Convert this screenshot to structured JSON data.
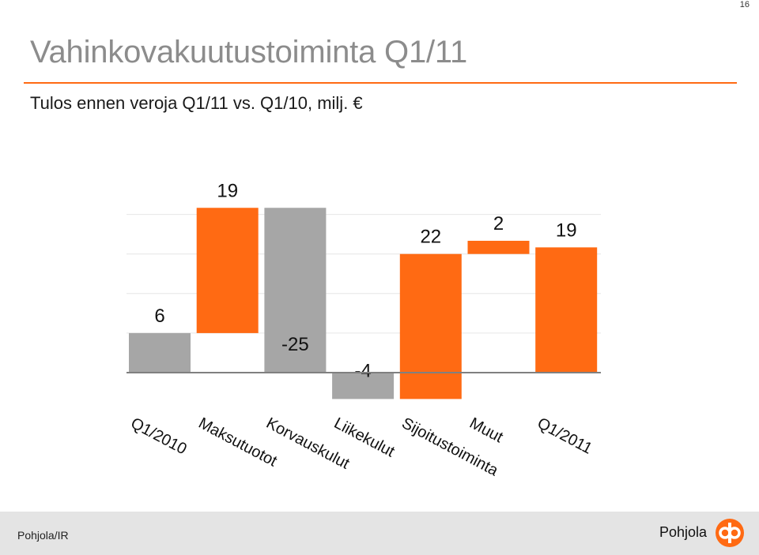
{
  "slide": {
    "number": "16",
    "title": "Vahinkovakuutustoiminta Q1/11",
    "subtitle": "Tulos ennen veroja Q1/11 vs. Q1/10, milj. €"
  },
  "footer": {
    "text": "Pohjola/IR",
    "brand": "Pohjola"
  },
  "colors": {
    "accent": "#ff6a13",
    "total": "#a6a6a6",
    "grid": "#e6e6e6",
    "axis": "#808080"
  },
  "chart_data": {
    "type": "bar",
    "subtype": "waterfall",
    "categories": [
      "Q1/2010",
      "Maksutuotot",
      "Korvauskulut",
      "Liikekulut",
      "Sijoitustoiminta",
      "Muut",
      "Q1/2011"
    ],
    "values": [
      6,
      19,
      -25,
      -4,
      22,
      2,
      19
    ],
    "data_labels": [
      "6",
      "19",
      "-25",
      "-4",
      "22",
      "2",
      "19"
    ],
    "bar_kinds": [
      "total",
      "change",
      "change",
      "change",
      "change",
      "change",
      "total"
    ],
    "bar_colors": [
      "#a6a6a6",
      "#ff6a13",
      "#a6a6a6",
      "#a6a6a6",
      "#ff6a13",
      "#ff6a13",
      "#ff6a13"
    ],
    "ylim": [
      -4,
      25
    ],
    "yticks": [
      0,
      6,
      12,
      18,
      24
    ],
    "grid": true,
    "legend": "none"
  }
}
